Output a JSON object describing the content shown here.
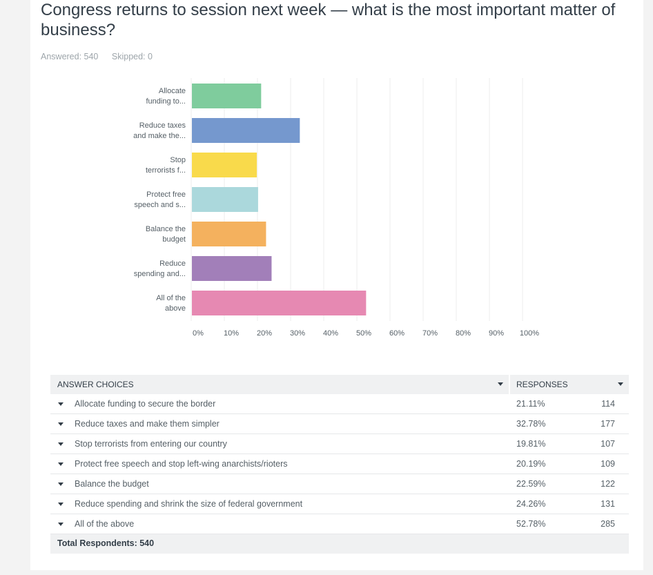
{
  "question": {
    "title": "Congress returns to session next week — what is the most important matter of business?",
    "answered_label": "Answered: 540",
    "skipped_label": "Skipped: 0"
  },
  "chart_data": {
    "type": "bar",
    "orientation": "horizontal",
    "title": "",
    "xlabel": "",
    "ylabel": "",
    "xlim": [
      0,
      100
    ],
    "categories": [
      [
        "Allocate",
        "funding to..."
      ],
      [
        "Reduce taxes",
        "and make the..."
      ],
      [
        "Stop",
        "terrorists f..."
      ],
      [
        "Protect free",
        "speech and s..."
      ],
      [
        "Balance the",
        "budget"
      ],
      [
        "Reduce",
        "spending and..."
      ],
      [
        "All of the",
        "above"
      ]
    ],
    "values": [
      21.11,
      32.78,
      19.81,
      20.19,
      22.59,
      24.26,
      52.78
    ],
    "colors": [
      "#7fcc9d",
      "#7598ce",
      "#f9da4b",
      "#abd8dc",
      "#f4b15e",
      "#a27fb9",
      "#e689b2"
    ],
    "x_ticks": [
      "0%",
      "10%",
      "20%",
      "30%",
      "40%",
      "50%",
      "60%",
      "70%",
      "80%",
      "90%",
      "100%"
    ]
  },
  "table": {
    "col_answer": "ANSWER CHOICES",
    "col_responses": "RESPONSES",
    "rows": [
      {
        "label": "Allocate funding to secure the border",
        "pct": "21.11%",
        "count": "114"
      },
      {
        "label": "Reduce taxes and make them simpler",
        "pct": "32.78%",
        "count": "177"
      },
      {
        "label": "Stop terrorists from entering our country",
        "pct": "19.81%",
        "count": "107"
      },
      {
        "label": "Protect free speech and stop left-wing anarchists/rioters",
        "pct": "20.19%",
        "count": "109"
      },
      {
        "label": "Balance the budget",
        "pct": "22.59%",
        "count": "122"
      },
      {
        "label": "Reduce spending and shrink the size of federal government",
        "pct": "24.26%",
        "count": "131"
      },
      {
        "label": "All of the above",
        "pct": "52.78%",
        "count": "285"
      }
    ],
    "total_label": "Total Respondents: 540"
  },
  "icons": {
    "sort": "caret-down-icon",
    "expand": "caret-down-icon"
  }
}
